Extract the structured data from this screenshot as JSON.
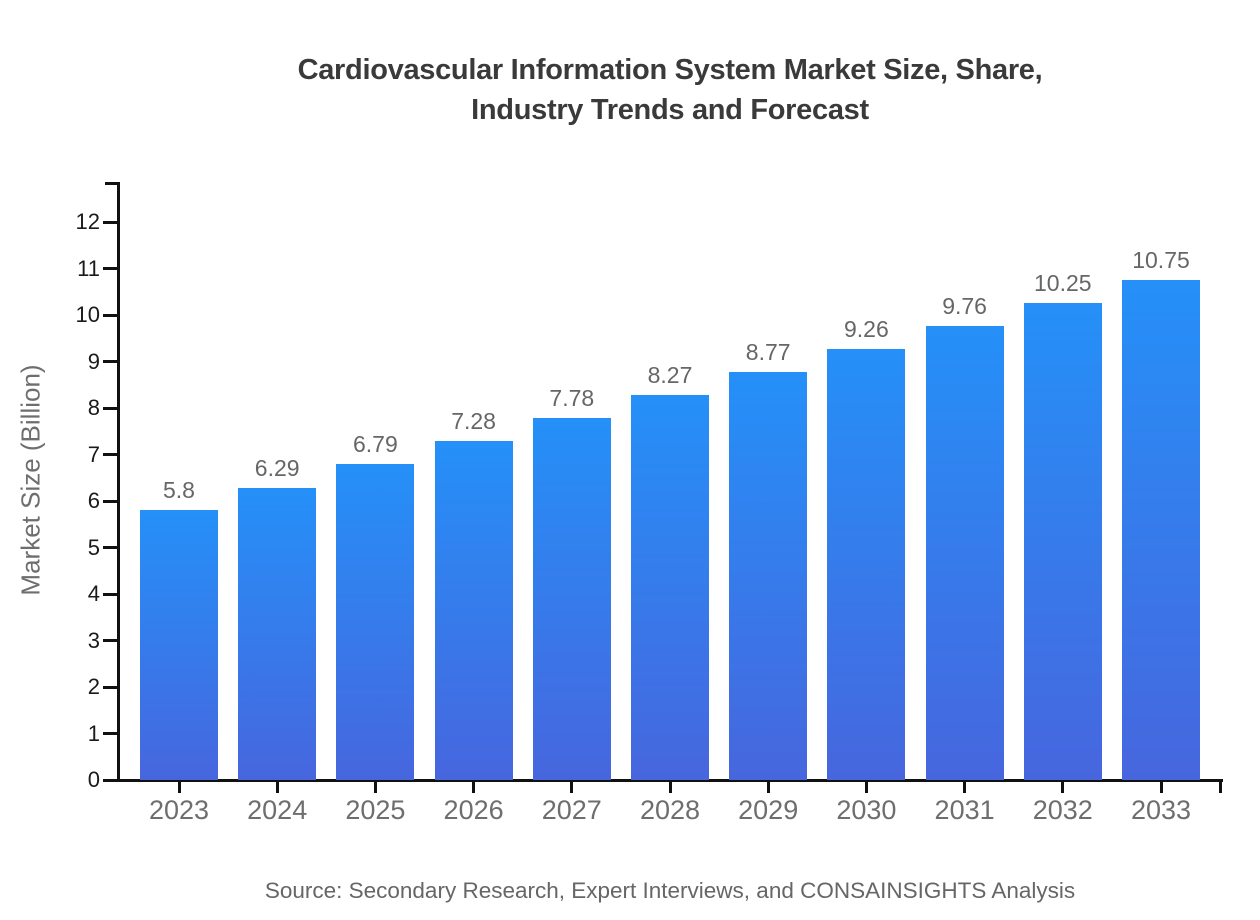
{
  "title": {
    "line1": "Cardiovascular Information System Market Size, Share,",
    "line2": "Industry Trends and Forecast"
  },
  "y_axis_label": "Market Size (Billion)",
  "source": "Source: Secondary Research, Expert Interviews, and CONSAINSIGHTS Analysis",
  "colors": {
    "bar_gradient_top": "#2590f8",
    "bar_gradient_bottom": "#4766de",
    "axis": "#111111",
    "y_tick_label": "#1a1a1a",
    "x_tick_label": "#6e6e6e",
    "value_label": "#666666",
    "title": "#3a3a3a",
    "axis_title": "#6e6e6e",
    "source_text": "#666666"
  },
  "chart_data": {
    "type": "bar",
    "title": "Cardiovascular Information System Market Size, Share, Industry Trends and Forecast",
    "categories": [
      "2023",
      "2024",
      "2025",
      "2026",
      "2027",
      "2028",
      "2029",
      "2030",
      "2031",
      "2032",
      "2033"
    ],
    "values": [
      5.8,
      6.29,
      6.79,
      7.28,
      7.78,
      8.27,
      8.77,
      9.26,
      9.76,
      10.25,
      10.75
    ],
    "xlabel": "",
    "ylabel": "Market Size (Billion)",
    "ylim": [
      0,
      12
    ],
    "y_tick_step": 1,
    "grid": false,
    "legend": false,
    "value_labels_shown": true
  }
}
